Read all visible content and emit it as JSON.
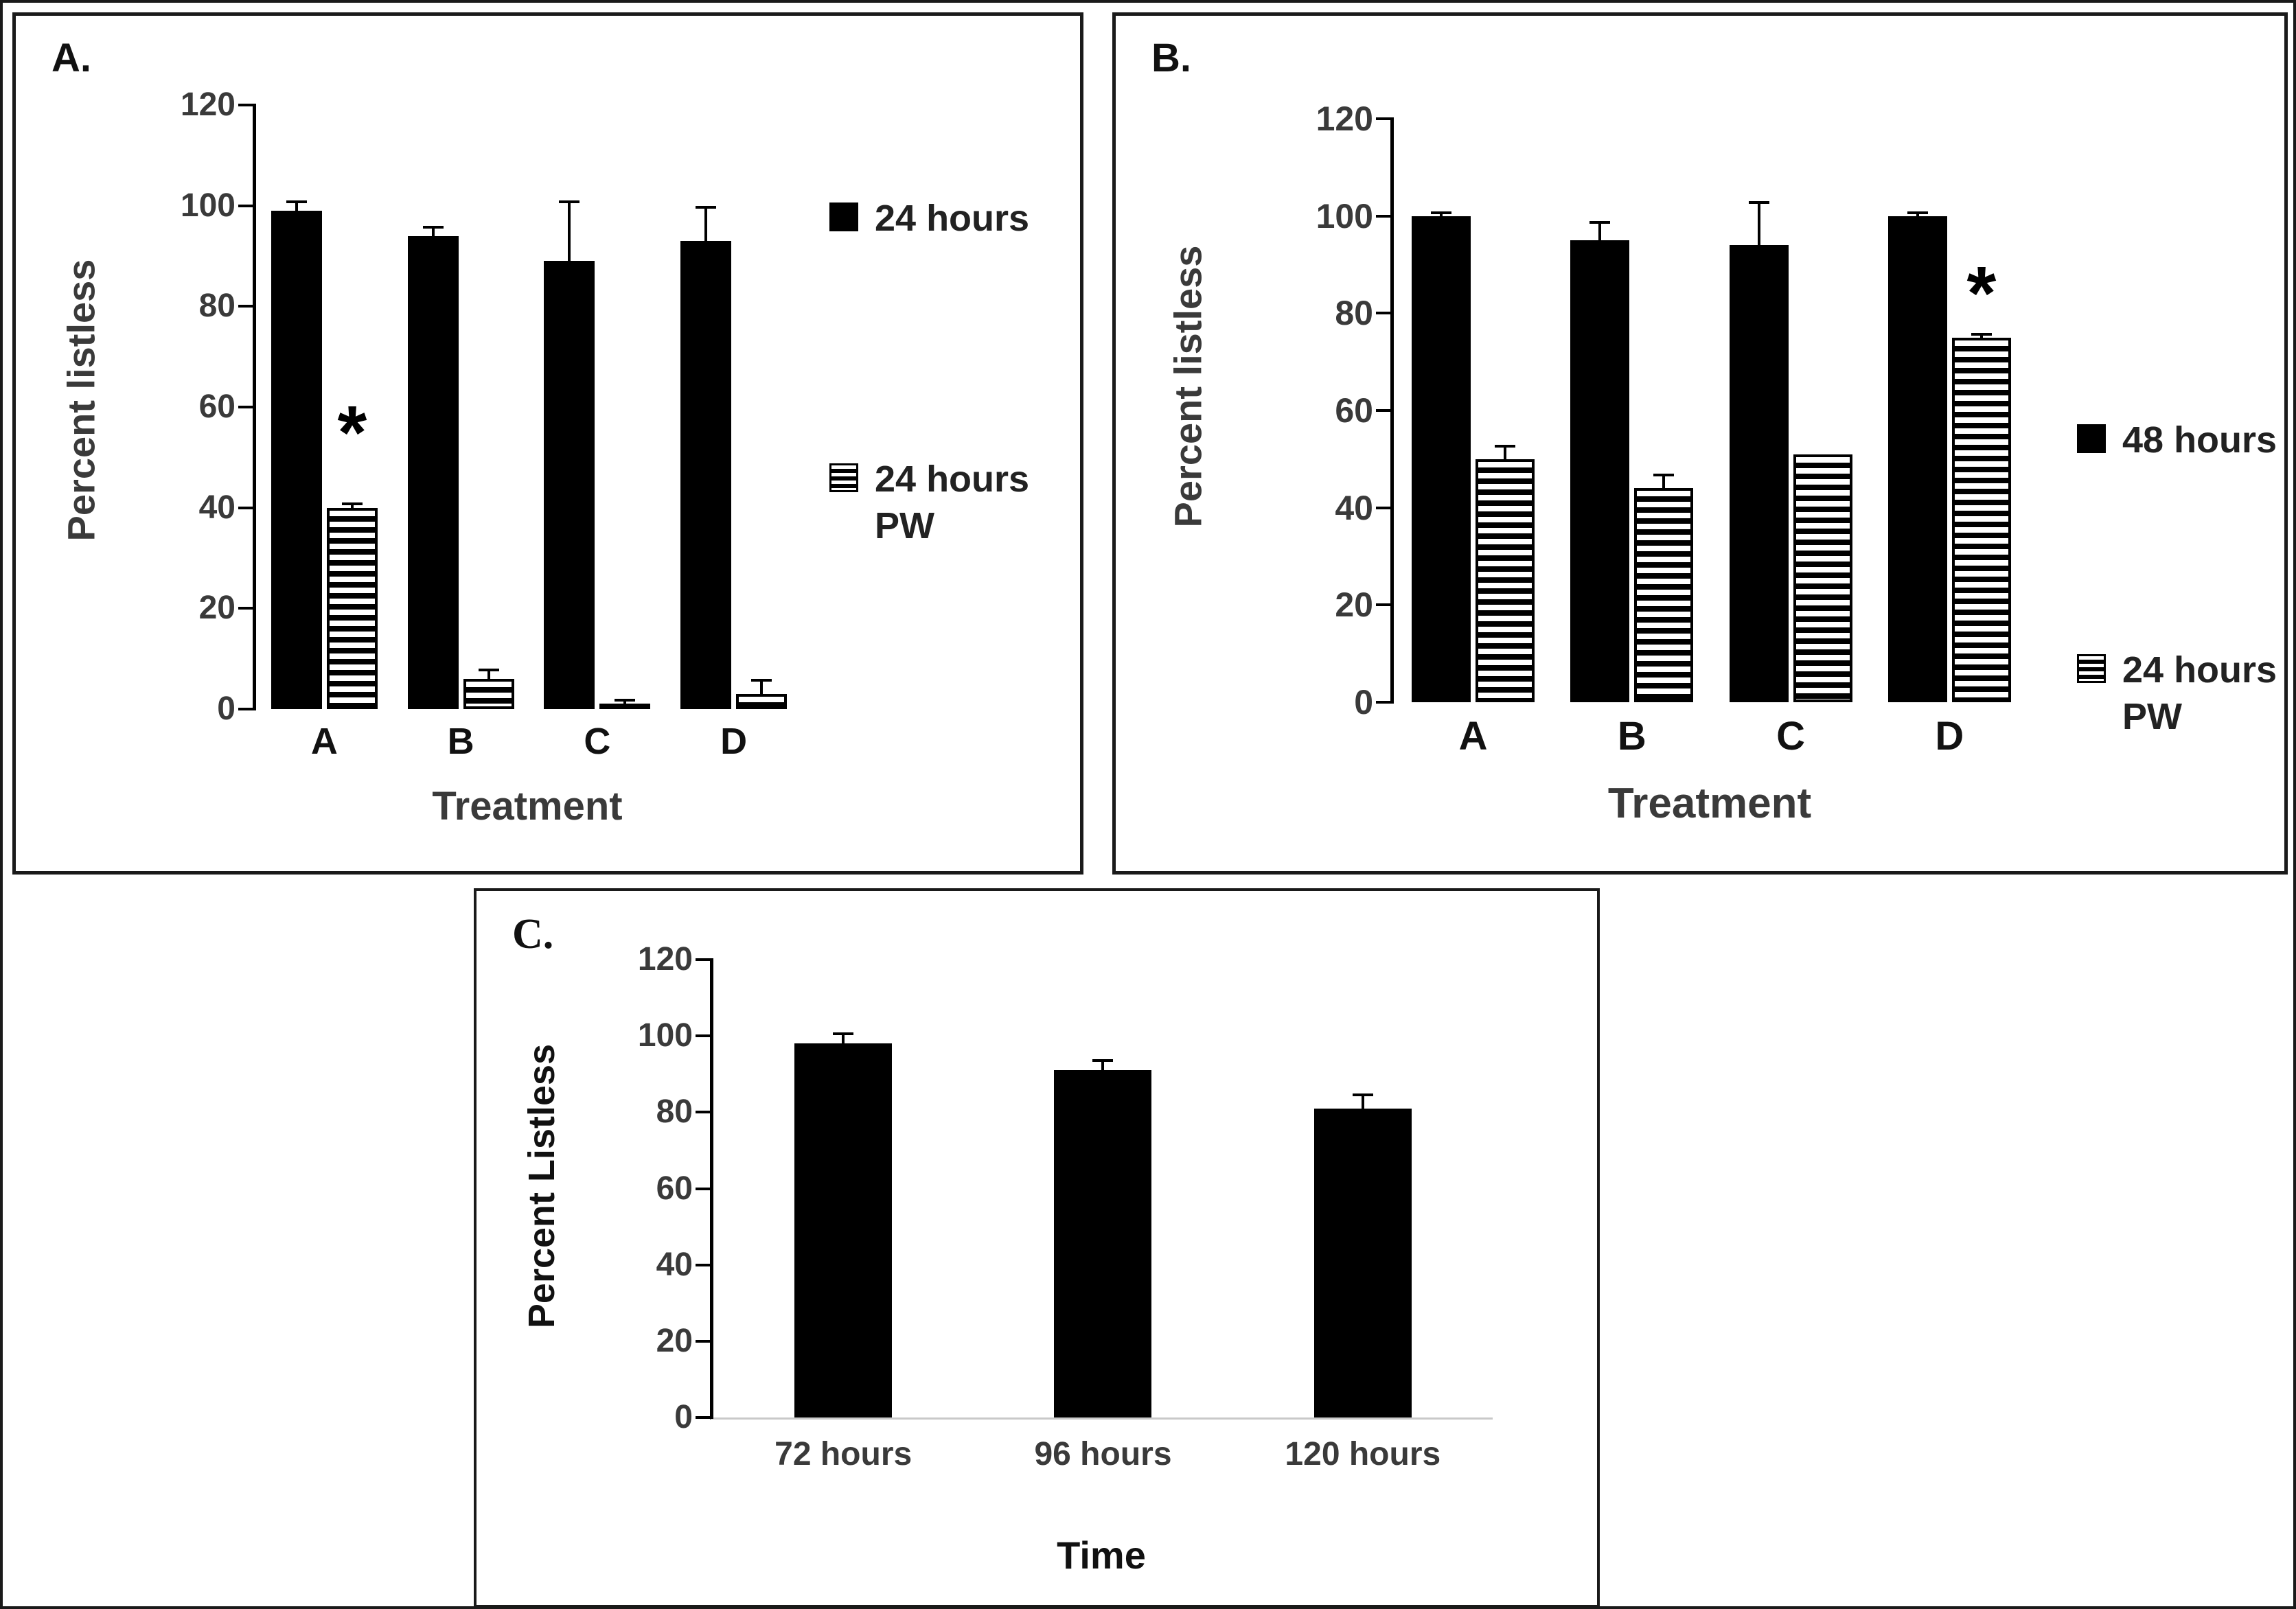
{
  "colors": {
    "bar": "#000000",
    "axis": "#000000",
    "text_dark": "#111111",
    "text_gray": "#3a3a3a",
    "baseline_gray": "#c9c9c9"
  },
  "chart_data": [
    {
      "type": "bar",
      "panel_label": "A.",
      "ylabel": "Percent listless",
      "xlabel": "Treatment",
      "categories": [
        "A",
        "B",
        "C",
        "D"
      ],
      "ylim": [
        0,
        120
      ],
      "yticks": [
        0,
        20,
        40,
        60,
        80,
        100,
        120
      ],
      "grid": false,
      "legend_position": "right",
      "series": [
        {
          "name": "24 hours",
          "style": "solid",
          "values": [
            99,
            94,
            89,
            93
          ],
          "errors": [
            2,
            2,
            12,
            7
          ]
        },
        {
          "name": "24 hours PW",
          "style": "striped",
          "values": [
            40,
            6,
            1,
            3
          ],
          "errors": [
            1,
            2,
            1,
            3
          ]
        }
      ],
      "annotations": [
        {
          "text": "*",
          "category_index": 0,
          "series_index": 1,
          "y": 50
        }
      ]
    },
    {
      "type": "bar",
      "panel_label": "B.",
      "ylabel": "Percent listless",
      "xlabel": "Treatment",
      "categories": [
        "A",
        "B",
        "C",
        "D"
      ],
      "ylim": [
        0,
        120
      ],
      "yticks": [
        0,
        20,
        40,
        60,
        80,
        100,
        120
      ],
      "grid": false,
      "legend_position": "right",
      "series": [
        {
          "name": "48 hours",
          "style": "solid",
          "values": [
            100,
            95,
            94,
            100
          ],
          "errors": [
            1,
            4,
            9,
            1
          ]
        },
        {
          "name": "24 hours PW",
          "style": "striped",
          "values": [
            50,
            44,
            51,
            75
          ],
          "errors": [
            3,
            3,
            0,
            1
          ]
        }
      ],
      "annotations": [
        {
          "text": "*",
          "category_index": 3,
          "series_index": 1,
          "y": 79
        }
      ]
    },
    {
      "type": "bar",
      "panel_label": "C.",
      "ylabel": "Percent Listless",
      "xlabel": "Time",
      "categories": [
        "72 hours",
        "96 hours",
        "120 hours"
      ],
      "ylim": [
        0,
        120
      ],
      "yticks": [
        0,
        20,
        40,
        60,
        80,
        100,
        120
      ],
      "grid": false,
      "legend_position": "none",
      "series": [
        {
          "name": "Percent Listless",
          "style": "solid",
          "values": [
            98,
            91,
            81
          ],
          "errors": [
            3,
            3,
            4
          ]
        }
      ],
      "annotations": []
    }
  ]
}
